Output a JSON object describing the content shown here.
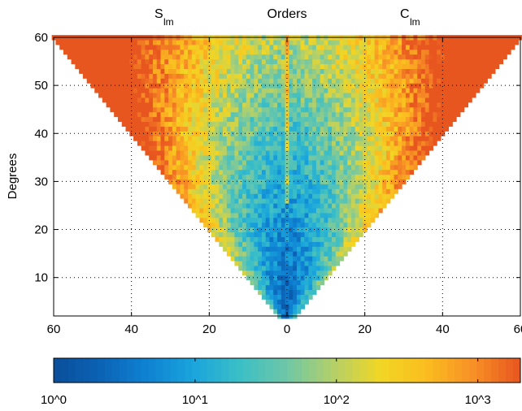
{
  "chart_data": {
    "type": "heatmap",
    "title": "Orders",
    "ylabel": "Degrees",
    "xlabel": "",
    "left_label": {
      "base": "S",
      "sub": "lm"
    },
    "right_label": {
      "base": "C",
      "sub": "lm"
    },
    "x_axis": {
      "range": [
        -60,
        60
      ],
      "ticks": [
        -60,
        -40,
        -20,
        0,
        20,
        40,
        60
      ],
      "tick_labels": [
        "60",
        "40",
        "20",
        "0",
        "20",
        "40",
        "60"
      ]
    },
    "y_axis": {
      "range": [
        2,
        60
      ],
      "ticks": [
        10,
        20,
        30,
        40,
        50,
        60
      ],
      "tick_labels": [
        "10",
        "20",
        "30",
        "40",
        "50",
        "60"
      ]
    },
    "grid": true,
    "grid_style": "dotted",
    "shape": "triangle |m| <= degree",
    "color_scale": {
      "type": "log",
      "range": [
        1,
        2000
      ],
      "ticks": [
        1,
        10,
        100,
        1000
      ],
      "tick_labels": [
        "10^0",
        "10^1",
        "10^2",
        "10^3"
      ],
      "colors": [
        "#0a4e9b",
        "#0b62b5",
        "#0f82d2",
        "#1aa5dc",
        "#3bbfc6",
        "#6fc7a7",
        "#b4d068",
        "#f2d624",
        "#fbbc1f",
        "#f78f26",
        "#e85620"
      ]
    },
    "value_trend": {
      "description": "values lowest near order 0 at low degrees, increasing with degree and toward the outer orders",
      "center_low_degree": 1,
      "center_high_degree": 30,
      "edge_value": 1000
    }
  }
}
